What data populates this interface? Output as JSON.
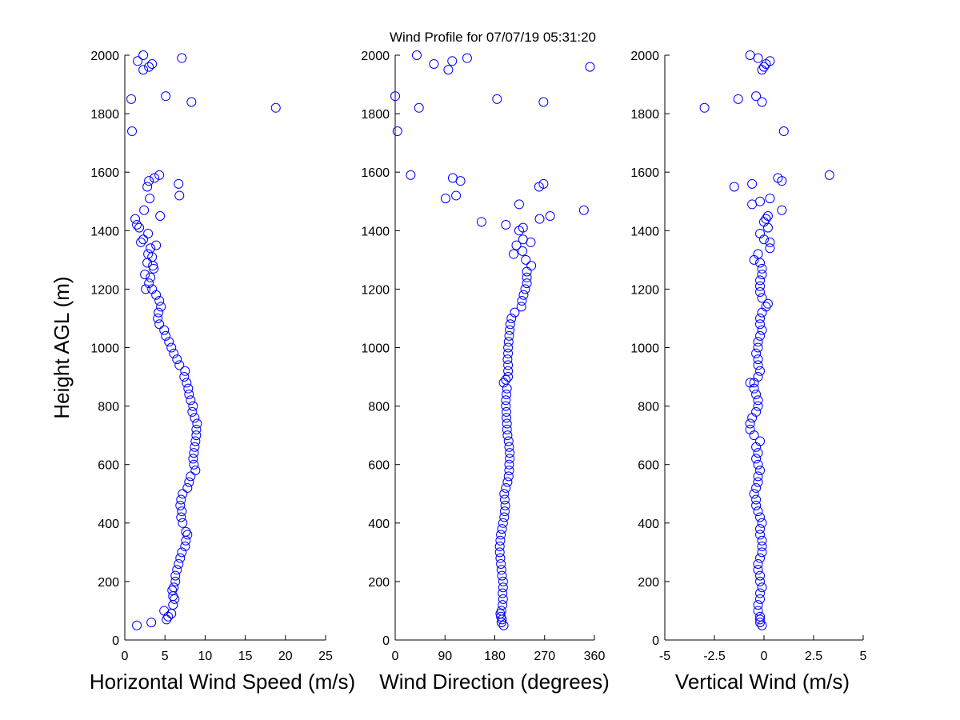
{
  "figure_title": "Wind Profile for  07/07/19 05:31:20",
  "marker_color": "#0000ff",
  "chart_data": [
    {
      "type": "scatter",
      "title": "",
      "xlabel": "Horizontal Wind Speed (m/s)",
      "ylabel": "Height AGL (m)",
      "xlim": [
        0,
        25
      ],
      "ylim": [
        0,
        2000
      ],
      "xticks": [
        "0",
        "5",
        "10",
        "15",
        "20",
        "25"
      ],
      "yticks": [
        "0",
        "200",
        "400",
        "600",
        "800",
        "1000",
        "1200",
        "1400",
        "1600",
        "1800",
        "2000"
      ],
      "grid": false,
      "points": [
        [
          1.5,
          50
        ],
        [
          3.3,
          60
        ],
        [
          5.2,
          70
        ],
        [
          5.4,
          80
        ],
        [
          5.8,
          90
        ],
        [
          4.9,
          100
        ],
        [
          6.0,
          120
        ],
        [
          6.2,
          140
        ],
        [
          6.0,
          150
        ],
        [
          5.9,
          170
        ],
        [
          6.1,
          180
        ],
        [
          6.3,
          200
        ],
        [
          6.3,
          220
        ],
        [
          6.5,
          240
        ],
        [
          6.7,
          260
        ],
        [
          6.9,
          280
        ],
        [
          7.1,
          300
        ],
        [
          7.5,
          320
        ],
        [
          7.6,
          340
        ],
        [
          7.8,
          360
        ],
        [
          7.6,
          370
        ],
        [
          7.2,
          400
        ],
        [
          7.0,
          420
        ],
        [
          7.1,
          440
        ],
        [
          6.9,
          460
        ],
        [
          7.0,
          480
        ],
        [
          7.2,
          500
        ],
        [
          7.8,
          520
        ],
        [
          8.0,
          540
        ],
        [
          8.2,
          560
        ],
        [
          8.8,
          580
        ],
        [
          8.6,
          600
        ],
        [
          8.5,
          620
        ],
        [
          8.6,
          640
        ],
        [
          8.7,
          660
        ],
        [
          8.8,
          680
        ],
        [
          8.9,
          700
        ],
        [
          8.9,
          720
        ],
        [
          9.0,
          740
        ],
        [
          8.7,
          760
        ],
        [
          8.4,
          780
        ],
        [
          8.5,
          800
        ],
        [
          8.2,
          820
        ],
        [
          8.0,
          840
        ],
        [
          7.9,
          860
        ],
        [
          7.7,
          880
        ],
        [
          7.4,
          900
        ],
        [
          7.5,
          920
        ],
        [
          6.8,
          940
        ],
        [
          6.5,
          960
        ],
        [
          6.1,
          980
        ],
        [
          5.8,
          1000
        ],
        [
          5.5,
          1020
        ],
        [
          5.1,
          1040
        ],
        [
          4.9,
          1060
        ],
        [
          4.3,
          1080
        ],
        [
          4.1,
          1100
        ],
        [
          4.2,
          1120
        ],
        [
          4.5,
          1140
        ],
        [
          4.3,
          1160
        ],
        [
          3.9,
          1180
        ],
        [
          3.4,
          1200
        ],
        [
          2.6,
          1200
        ],
        [
          3.0,
          1220
        ],
        [
          3.2,
          1240
        ],
        [
          2.5,
          1250
        ],
        [
          3.6,
          1270
        ],
        [
          3.5,
          1280
        ],
        [
          2.8,
          1290
        ],
        [
          3.4,
          1310
        ],
        [
          2.9,
          1320
        ],
        [
          3.2,
          1340
        ],
        [
          3.9,
          1350
        ],
        [
          2.0,
          1360
        ],
        [
          2.3,
          1370
        ],
        [
          2.9,
          1390
        ],
        [
          1.8,
          1410
        ],
        [
          1.5,
          1420
        ],
        [
          1.3,
          1440
        ],
        [
          4.4,
          1450
        ],
        [
          2.4,
          1470
        ],
        [
          3.1,
          1510
        ],
        [
          6.8,
          1520
        ],
        [
          2.8,
          1550
        ],
        [
          6.7,
          1560
        ],
        [
          3.0,
          1570
        ],
        [
          3.7,
          1580
        ],
        [
          4.3,
          1590
        ],
        [
          0.9,
          1740
        ],
        [
          18.8,
          1820
        ],
        [
          8.3,
          1840
        ],
        [
          0.8,
          1850
        ],
        [
          5.1,
          1860
        ],
        [
          2.3,
          1950
        ],
        [
          3.0,
          1960
        ],
        [
          3.4,
          1970
        ],
        [
          1.6,
          1980
        ],
        [
          7.1,
          1990
        ],
        [
          2.3,
          2000
        ]
      ]
    },
    {
      "type": "scatter",
      "title": "",
      "xlabel": "Wind Direction (degrees)",
      "ylabel": "",
      "xlim": [
        0,
        360
      ],
      "ylim": [
        0,
        2000
      ],
      "xticks": [
        "0",
        "90",
        "180",
        "270",
        "360"
      ],
      "yticks": [
        "0",
        "200",
        "400",
        "600",
        "800",
        "1000",
        "1200",
        "1400",
        "1600",
        "1800",
        "2000"
      ],
      "grid": false,
      "points": [
        [
          196,
          50
        ],
        [
          192,
          60
        ],
        [
          193,
          70
        ],
        [
          191,
          80
        ],
        [
          190,
          90
        ],
        [
          192,
          100
        ],
        [
          194,
          120
        ],
        [
          195,
          140
        ],
        [
          194,
          160
        ],
        [
          195,
          180
        ],
        [
          195,
          200
        ],
        [
          193,
          220
        ],
        [
          192,
          240
        ],
        [
          191,
          260
        ],
        [
          190,
          280
        ],
        [
          189,
          300
        ],
        [
          189,
          320
        ],
        [
          190,
          340
        ],
        [
          191,
          360
        ],
        [
          193,
          380
        ],
        [
          195,
          400
        ],
        [
          197,
          420
        ],
        [
          198,
          440
        ],
        [
          199,
          460
        ],
        [
          198,
          480
        ],
        [
          197,
          500
        ],
        [
          200,
          520
        ],
        [
          203,
          540
        ],
        [
          205,
          560
        ],
        [
          206,
          580
        ],
        [
          206,
          600
        ],
        [
          207,
          620
        ],
        [
          207,
          640
        ],
        [
          206,
          660
        ],
        [
          205,
          680
        ],
        [
          203,
          700
        ],
        [
          202,
          720
        ],
        [
          202,
          740
        ],
        [
          201,
          760
        ],
        [
          201,
          780
        ],
        [
          200,
          800
        ],
        [
          200,
          820
        ],
        [
          201,
          840
        ],
        [
          202,
          860
        ],
        [
          196,
          880
        ],
        [
          200,
          890
        ],
        [
          204,
          900
        ],
        [
          204,
          920
        ],
        [
          204,
          940
        ],
        [
          203,
          960
        ],
        [
          204,
          980
        ],
        [
          204,
          1000
        ],
        [
          205,
          1020
        ],
        [
          206,
          1040
        ],
        [
          207,
          1060
        ],
        [
          208,
          1080
        ],
        [
          210,
          1100
        ],
        [
          216,
          1120
        ],
        [
          228,
          1140
        ],
        [
          229,
          1160
        ],
        [
          232,
          1180
        ],
        [
          235,
          1200
        ],
        [
          238,
          1220
        ],
        [
          238,
          1240
        ],
        [
          238,
          1260
        ],
        [
          246,
          1280
        ],
        [
          236,
          1300
        ],
        [
          214,
          1320
        ],
        [
          230,
          1330
        ],
        [
          245,
          1360
        ],
        [
          219,
          1350
        ],
        [
          231,
          1370
        ],
        [
          224,
          1400
        ],
        [
          231,
          1410
        ],
        [
          200,
          1420
        ],
        [
          156,
          1430
        ],
        [
          261,
          1440
        ],
        [
          280,
          1450
        ],
        [
          341,
          1470
        ],
        [
          224,
          1490
        ],
        [
          91,
          1510
        ],
        [
          110,
          1520
        ],
        [
          260,
          1550
        ],
        [
          268,
          1560
        ],
        [
          118,
          1570
        ],
        [
          104,
          1580
        ],
        [
          28,
          1590
        ],
        [
          4,
          1740
        ],
        [
          43,
          1820
        ],
        [
          184,
          1850
        ],
        [
          268,
          1840
        ],
        [
          0,
          1860
        ],
        [
          96,
          1950
        ],
        [
          352,
          1960
        ],
        [
          70,
          1970
        ],
        [
          103,
          1980
        ],
        [
          130,
          1990
        ],
        [
          39,
          2000
        ]
      ]
    },
    {
      "type": "scatter",
      "title": "",
      "xlabel": "Vertical Wind (m/s)",
      "ylabel": "",
      "xlim": [
        -5,
        5
      ],
      "ylim": [
        0,
        2000
      ],
      "xticks": [
        "-5",
        "-2.5",
        "0",
        "2.5",
        "5"
      ],
      "yticks": [
        "0",
        "200",
        "400",
        "600",
        "800",
        "1000",
        "1200",
        "1400",
        "1600",
        "1800",
        "2000"
      ],
      "grid": false,
      "points": [
        [
          -0.1,
          50
        ],
        [
          -0.2,
          60
        ],
        [
          -0.2,
          70
        ],
        [
          -0.2,
          80
        ],
        [
          -0.3,
          100
        ],
        [
          -0.3,
          120
        ],
        [
          -0.2,
          140
        ],
        [
          -0.2,
          160
        ],
        [
          -0.1,
          180
        ],
        [
          -0.2,
          200
        ],
        [
          -0.2,
          220
        ],
        [
          -0.3,
          240
        ],
        [
          -0.3,
          260
        ],
        [
          -0.2,
          280
        ],
        [
          -0.1,
          300
        ],
        [
          -0.1,
          320
        ],
        [
          -0.1,
          340
        ],
        [
          -0.2,
          360
        ],
        [
          -0.2,
          380
        ],
        [
          -0.1,
          400
        ],
        [
          -0.2,
          420
        ],
        [
          -0.3,
          440
        ],
        [
          -0.4,
          460
        ],
        [
          -0.4,
          480
        ],
        [
          -0.5,
          500
        ],
        [
          -0.4,
          520
        ],
        [
          -0.3,
          540
        ],
        [
          -0.3,
          560
        ],
        [
          -0.2,
          580
        ],
        [
          -0.3,
          600
        ],
        [
          -0.4,
          620
        ],
        [
          -0.3,
          640
        ],
        [
          -0.4,
          660
        ],
        [
          -0.2,
          680
        ],
        [
          -0.5,
          700
        ],
        [
          -0.7,
          720
        ],
        [
          -0.7,
          740
        ],
        [
          -0.6,
          760
        ],
        [
          -0.4,
          780
        ],
        [
          -0.3,
          800
        ],
        [
          -0.3,
          820
        ],
        [
          -0.4,
          840
        ],
        [
          -0.5,
          860
        ],
        [
          -0.5,
          880
        ],
        [
          -0.7,
          880
        ],
        [
          -0.3,
          900
        ],
        [
          -0.2,
          920
        ],
        [
          -0.3,
          940
        ],
        [
          -0.3,
          960
        ],
        [
          -0.4,
          980
        ],
        [
          -0.3,
          1000
        ],
        [
          -0.3,
          1020
        ],
        [
          -0.2,
          1040
        ],
        [
          -0.1,
          1060
        ],
        [
          -0.2,
          1080
        ],
        [
          -0.2,
          1100
        ],
        [
          -0.1,
          1120
        ],
        [
          0.1,
          1140
        ],
        [
          0.2,
          1150
        ],
        [
          -0.1,
          1170
        ],
        [
          -0.2,
          1190
        ],
        [
          -0.2,
          1210
        ],
        [
          -0.2,
          1230
        ],
        [
          -0.1,
          1250
        ],
        [
          -0.1,
          1270
        ],
        [
          -0.2,
          1290
        ],
        [
          -0.5,
          1300
        ],
        [
          -0.3,
          1320
        ],
        [
          0.3,
          1340
        ],
        [
          0.3,
          1360
        ],
        [
          0.0,
          1370
        ],
        [
          -0.2,
          1390
        ],
        [
          0.2,
          1410
        ],
        [
          0.0,
          1430
        ],
        [
          0.1,
          1440
        ],
        [
          0.2,
          1450
        ],
        [
          -0.6,
          1490
        ],
        [
          0.3,
          1510
        ],
        [
          0.9,
          1470
        ],
        [
          -0.2,
          1500
        ],
        [
          -1.5,
          1550
        ],
        [
          -0.6,
          1560
        ],
        [
          0.7,
          1580
        ],
        [
          0.9,
          1570
        ],
        [
          3.3,
          1590
        ],
        [
          1.0,
          1740
        ],
        [
          -3.0,
          1820
        ],
        [
          -0.1,
          1840
        ],
        [
          -1.3,
          1850
        ],
        [
          -0.4,
          1860
        ],
        [
          -0.1,
          1950
        ],
        [
          0.0,
          1960
        ],
        [
          0.1,
          1970
        ],
        [
          0.3,
          1980
        ],
        [
          -0.3,
          1990
        ],
        [
          -0.7,
          2000
        ]
      ]
    }
  ]
}
